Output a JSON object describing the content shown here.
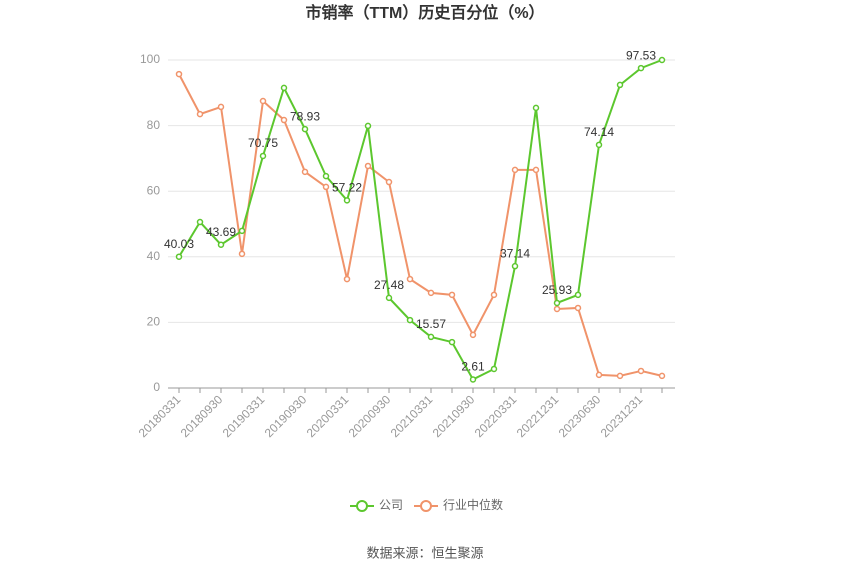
{
  "chart_data": {
    "type": "line",
    "title": "市销率（TTM）历史百分位（%）",
    "source": "数据来源：恒生聚源",
    "categories": [
      "20180331",
      null,
      "20180930",
      null,
      "20190331",
      null,
      "20190930",
      null,
      "20200331",
      null,
      "20200930",
      null,
      "20210331",
      null,
      "20210930",
      null,
      "20220331",
      null,
      "20221231",
      null,
      "20230630",
      null,
      "20231231",
      null
    ],
    "series": [
      {
        "name": "公司",
        "color": "#5cc72e",
        "values": [
          40.03,
          50.6,
          43.69,
          47.9,
          70.75,
          91.5,
          78.93,
          64.6,
          57.22,
          79.9,
          27.48,
          20.7,
          15.57,
          14.0,
          2.61,
          5.8,
          37.14,
          85.4,
          25.93,
          28.4,
          74.14,
          92.4,
          97.53,
          100
        ],
        "value_labels": [
          "40.03",
          null,
          "43.69",
          null,
          "70.75",
          null,
          "78.93",
          null,
          "57.22",
          null,
          "27.48",
          null,
          "15.57",
          null,
          "2.61",
          null,
          "37.14",
          null,
          "25.93",
          null,
          "74.14",
          null,
          "97.53",
          null
        ]
      },
      {
        "name": "行业中位数",
        "color": "#f0936a",
        "values": [
          95.7,
          83.5,
          85.7,
          40.9,
          87.5,
          81.7,
          65.9,
          61.3,
          33.2,
          67.7,
          62.8,
          33.2,
          29.0,
          28.4,
          16.2,
          28.4,
          66.5,
          66.5,
          24.1,
          24.4,
          4.0,
          3.7,
          5.2,
          3.7
        ]
      }
    ],
    "ylim": [
      0,
      100
    ],
    "yticks": [
      0,
      20,
      40,
      60,
      80,
      100
    ],
    "grid": true
  }
}
